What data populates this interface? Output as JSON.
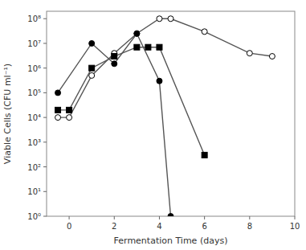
{
  "chart_data": {
    "type": "line",
    "x_label": "Fermentation Time (days)",
    "y_label": "Viable Cells (CFU ml⁻¹)",
    "log": "y",
    "grid": false,
    "xlim": [
      -1,
      10
    ],
    "ylim": [
      1.0,
      200000000.0
    ],
    "xticks": [
      0,
      2,
      4,
      6,
      8,
      10
    ],
    "yticks": [
      {
        "value": 1,
        "label": "10⁰"
      },
      {
        "value": 10,
        "label": "10¹"
      },
      {
        "value": 100,
        "label": "10²"
      },
      {
        "value": 1000,
        "label": "10³"
      },
      {
        "value": 10000,
        "label": "10⁴"
      },
      {
        "value": 100000,
        "label": "10⁵"
      },
      {
        "value": 1000000,
        "label": "10⁶"
      },
      {
        "value": 10000000,
        "label": "10⁷"
      },
      {
        "value": 100000000,
        "label": "10⁸"
      }
    ],
    "series": [
      {
        "color": "#555555",
        "marker": "open-circle",
        "line_style": "solid",
        "x": [
          -0.5,
          0,
          1,
          2,
          3,
          4,
          4.5,
          6,
          8,
          9
        ],
        "values": [
          10000.0,
          10000.0,
          500000.0,
          4000000.0,
          25000000.0,
          100000000.0,
          100000000.0,
          30000000.0,
          4000000.0,
          3000000.0
        ]
      },
      {
        "color": "#555555",
        "marker": "circle",
        "line_style": "solid",
        "x": [
          -0.5,
          1,
          2,
          3,
          4,
          4.5
        ],
        "values": [
          100000.0,
          10000000.0,
          1500000.0,
          25000000.0,
          300000.0,
          1
        ]
      },
      {
        "color": "#555555",
        "marker": "square",
        "line_style": "solid",
        "x": [
          -0.5,
          0,
          1,
          2,
          3,
          3.5,
          4,
          6
        ],
        "values": [
          20000.0,
          20000.0,
          1000000.0,
          3000000.0,
          7000000.0,
          7000000.0,
          7000000.0,
          300.0
        ]
      }
    ]
  }
}
